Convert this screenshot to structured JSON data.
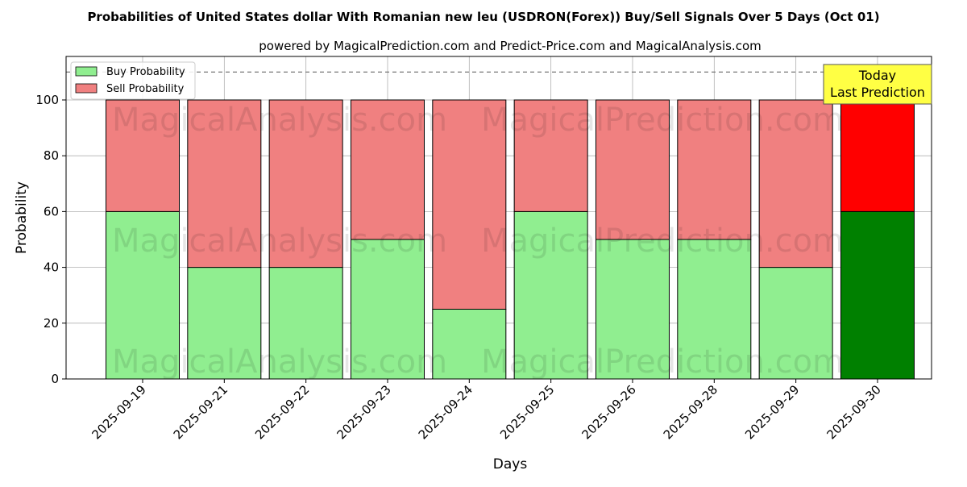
{
  "chart_data": {
    "type": "bar",
    "title": "Probabilities of United States dollar With Romanian new leu (USDRON(Forex)) Buy/Sell Signals Over 5 Days (Oct 01)",
    "subtitle": "powered by MagicalPrediction.com and Predict-Price.com and MagicalAnalysis.com",
    "xlabel": "Days",
    "ylabel": "Probability",
    "ylim": [
      0,
      115.6
    ],
    "yticks": [
      0,
      20,
      40,
      60,
      80,
      100
    ],
    "grid": true,
    "categories": [
      "2025-09-19",
      "2025-09-21",
      "2025-09-22",
      "2025-09-23",
      "2025-09-24",
      "2025-09-25",
      "2025-09-26",
      "2025-09-28",
      "2025-09-29",
      "2025-09-30"
    ],
    "series": [
      {
        "name": "Buy Probability",
        "values": [
          60,
          40,
          40,
          50,
          25,
          60,
          50,
          50,
          40,
          60
        ],
        "color": "#90ee90",
        "highlight_color": "#008000"
      },
      {
        "name": "Sell Probability",
        "values": [
          40,
          60,
          60,
          50,
          75,
          40,
          50,
          50,
          60,
          40
        ],
        "color": "#f08080",
        "highlight_color": "#ff0000"
      }
    ],
    "legend_placement": "top-left",
    "reference_line": 110,
    "annotation": {
      "line1": "Today",
      "line2": "Last Prediction",
      "color": "#ffff44"
    },
    "watermarks": [
      "MagicalAnalysis.com",
      "MagicalPrediction.com"
    ]
  }
}
